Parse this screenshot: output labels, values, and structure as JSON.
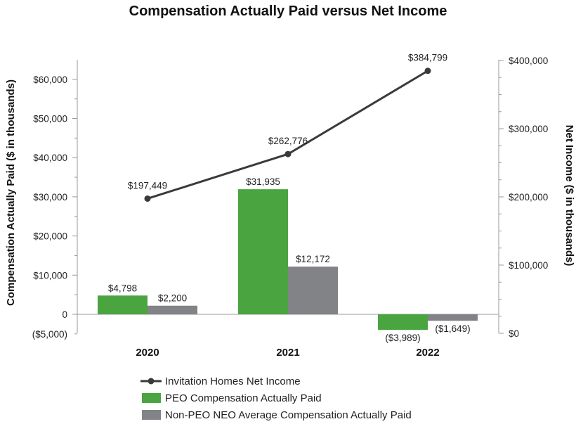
{
  "chart_data": {
    "type": "bar",
    "title": "Compensation Actually Paid versus Net Income",
    "categories": [
      "2020",
      "2021",
      "2022"
    ],
    "ylabel": "Compensation Actually Paid ($ in thousands)",
    "y2label": "Net Income ($ in thousands)",
    "ylim": [
      -5000,
      62000
    ],
    "yticks": [
      -5000,
      0,
      10000,
      20000,
      30000,
      40000,
      50000,
      60000
    ],
    "ytick_labels": [
      "($5,000)",
      "0",
      "$10,000",
      "$20,000",
      "$30,000",
      "$40,000",
      "$50,000",
      "$60,000"
    ],
    "y2lim": [
      0,
      400000
    ],
    "y2ticks": [
      0,
      100000,
      200000,
      300000,
      400000
    ],
    "y2tick_labels": [
      "$0",
      "$100,000",
      "$200,000",
      "$300,000",
      "$400,000"
    ],
    "grid": false,
    "series": [
      {
        "name": "PEO Compensation Actually Paid",
        "type": "bar",
        "axis": "left",
        "color": "#4aa541",
        "values": [
          4798,
          31935,
          -3989
        ],
        "labels": [
          "$4,798",
          "$31,935",
          "($3,989)"
        ]
      },
      {
        "name": "Non-PEO NEO Average Compensation Actually Paid",
        "type": "bar",
        "axis": "left",
        "color": "#828386",
        "values": [
          2200,
          12172,
          -1649
        ],
        "labels": [
          "$2,200",
          "$12,172",
          "($1,649)"
        ]
      },
      {
        "name": "Invitation Homes Net Income",
        "type": "line",
        "axis": "right",
        "color": "#3a3a3c",
        "values": [
          197449,
          262776,
          384799
        ],
        "labels": [
          "$197,449",
          "$262,776",
          "$384,799"
        ]
      }
    ],
    "legend": {
      "placement": "bottom-center",
      "order": [
        2,
        0,
        1
      ]
    }
  }
}
